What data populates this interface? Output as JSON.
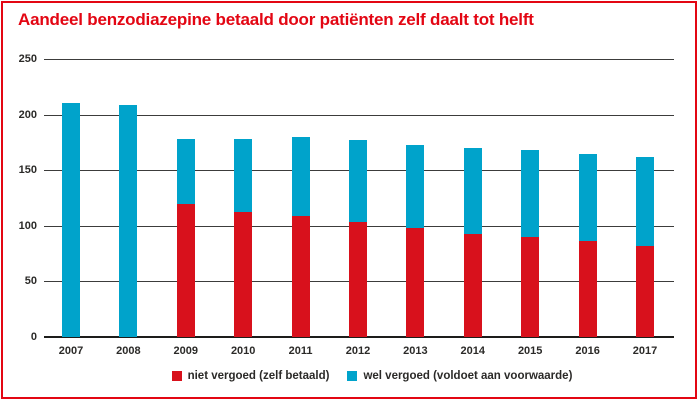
{
  "title": "Aandeel benzodiazepine betaald door patiënten zelf daalt tot helft",
  "colors": {
    "red": "#d8111c",
    "blue": "#00a3cb",
    "accent_red": "#e30613",
    "axis_text": "#2b2a28",
    "gridline": "#3c3c3b"
  },
  "chart_data": {
    "type": "bar",
    "stacked": true,
    "title": "Aandeel benzodiazepine betaald door patiënten zelf daalt tot helft",
    "categories": [
      "2007",
      "2008",
      "2009",
      "2010",
      "2011",
      "2012",
      "2013",
      "2014",
      "2015",
      "2016",
      "2017"
    ],
    "series": [
      {
        "name": "niet vergoed (zelf betaald)",
        "color_key": "red",
        "values": [
          0,
          0,
          120,
          112,
          109,
          103,
          98,
          93,
          90,
          86,
          82
        ]
      },
      {
        "name": "wel vergoed (voldoet aan voorwaarde)",
        "color_key": "blue",
        "values": [
          210,
          209,
          58,
          66,
          71,
          74,
          75,
          77,
          78,
          79,
          80
        ]
      }
    ],
    "totals": [
      210,
      209,
      178,
      178,
      180,
      177,
      173,
      170,
      168,
      165,
      162
    ],
    "xlabel": "",
    "ylabel": "",
    "ylim": [
      0,
      250
    ],
    "yticks": [
      0,
      50,
      100,
      150,
      200,
      250
    ],
    "grid": true,
    "legend_position": "bottom"
  },
  "legend": {
    "items": [
      {
        "label": "niet vergoed (zelf betaald)",
        "color_key": "red"
      },
      {
        "label": "wel vergoed (voldoet aan voorwaarde)",
        "color_key": "blue"
      }
    ]
  }
}
